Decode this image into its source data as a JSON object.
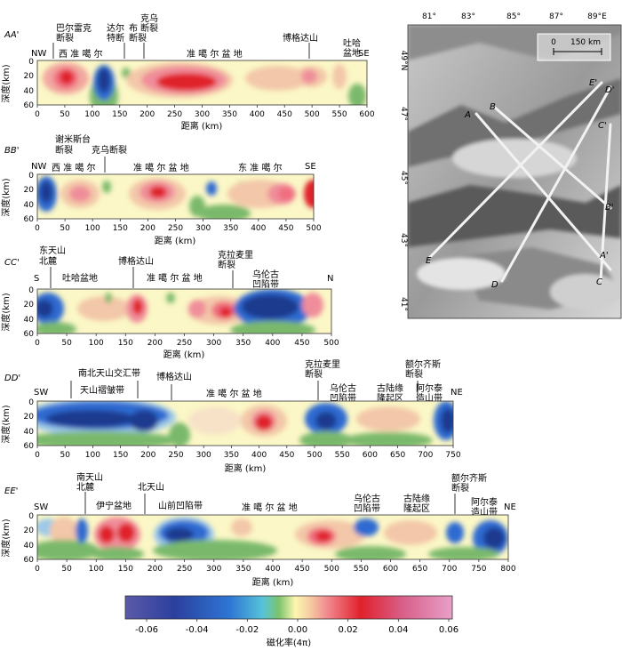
{
  "colors": {
    "neg3": "#1d3b8f",
    "neg2": "#2f6bd1",
    "neg1": "#9cc9e8",
    "zero_low": "#7ab96c",
    "zero": "#fbf7c6",
    "pos1": "#f6c9a4",
    "pos2": "#f08d9a",
    "pos3": "#e0212b"
  },
  "common": {
    "depth_label": "深度(km)",
    "distance_label": "距离 (km)",
    "depth_ticks": [
      "0",
      "20",
      "40",
      "60"
    ]
  },
  "profiles": [
    {
      "id": "AA'",
      "left_dir": "NW",
      "right_dir": "SE",
      "x_ticks": [
        "0",
        "50",
        "100",
        "150",
        "200",
        "250",
        "300",
        "350",
        "400",
        "450",
        "500",
        "550",
        "600"
      ],
      "annotations": [
        {
          "l1": "巴尔雷克",
          "l2": "断裂"
        },
        {
          "l1": "达尔",
          "l2": "特断"
        },
        {
          "l1": "布",
          "l2": "断裂"
        },
        {
          "l1": "克乌",
          "l2": "断裂"
        },
        {
          "l1": "博格达山",
          "l2": ""
        },
        {
          "l1": "吐哈",
          "l2": "盆地"
        }
      ],
      "regions": [
        "西 准 噶 尔",
        "准 噶 尔 盆 地"
      ]
    },
    {
      "id": "BB'",
      "left_dir": "NW",
      "right_dir": "SE",
      "x_ticks": [
        "0",
        "50",
        "100",
        "150",
        "200",
        "250",
        "300",
        "350",
        "400",
        "450",
        "500"
      ],
      "annotations": [
        {
          "l1": "谢米斯台",
          "l2": "断裂"
        },
        {
          "l1": "克乌断裂",
          "l2": ""
        }
      ],
      "regions": [
        "西 准 噶 尔",
        "准 噶 尔 盆 地",
        "东 准 噶 尔"
      ]
    },
    {
      "id": "CC'",
      "left_dir": "S",
      "right_dir": "N",
      "x_ticks": [
        "0",
        "50",
        "100",
        "150",
        "200",
        "250",
        "300",
        "350",
        "400",
        "450",
        "500"
      ],
      "annotations": [
        {
          "l1": "东天山",
          "l2": "北麓"
        },
        {
          "l1": "博格达山",
          "l2": ""
        },
        {
          "l1": "克拉麦里",
          "l2": "断裂"
        },
        {
          "l1": "乌伦古",
          "l2": "凹陷带"
        }
      ],
      "regions": [
        "吐哈盆地",
        "准 噶 尔 盆 地"
      ]
    },
    {
      "id": "DD'",
      "left_dir": "SW",
      "right_dir": "NE",
      "x_ticks": [
        "0",
        "50",
        "100",
        "150",
        "200",
        "250",
        "300",
        "350",
        "400",
        "450",
        "500",
        "550",
        "600",
        "650",
        "700",
        "750"
      ],
      "annotations": [
        {
          "l1": "南北天山交汇带",
          "l2": ""
        },
        {
          "l1": "天山褶皱带",
          "l2": ""
        },
        {
          "l1": "博格达山",
          "l2": ""
        },
        {
          "l1": "克拉麦里",
          "l2": "断裂"
        },
        {
          "l1": "乌伦古",
          "l2": "凹陷带"
        },
        {
          "l1": "古陆缘",
          "l2": "隆起区"
        },
        {
          "l1": "额尔齐斯",
          "l2": "断裂"
        },
        {
          "l1": "阿尔泰",
          "l2": "造山带"
        }
      ],
      "regions": [
        "准 噶 尔 盆 地"
      ]
    },
    {
      "id": "EE'",
      "left_dir": "SW",
      "right_dir": "NE",
      "x_ticks": [
        "0",
        "50",
        "100",
        "150",
        "200",
        "250",
        "300",
        "350",
        "400",
        "450",
        "500",
        "550",
        "600",
        "650",
        "700",
        "750",
        "800"
      ],
      "annotations": [
        {
          "l1": "南天山",
          "l2": "北麓"
        },
        {
          "l1": "伊宁盆地",
          "l2": ""
        },
        {
          "l1": "北天山",
          "l2": ""
        },
        {
          "l1": "山前凹陷带",
          "l2": ""
        },
        {
          "l1": "乌伦古",
          "l2": "凹陷带"
        },
        {
          "l1": "古陆缘",
          "l2": "隆起区"
        },
        {
          "l1": "额尔齐斯",
          "l2": "断裂"
        },
        {
          "l1": "阿尔泰",
          "l2": "造山带"
        }
      ],
      "regions": [
        "准 噶 尔 盆 地"
      ]
    }
  ],
  "map": {
    "lon_labels": [
      "81°",
      "83°",
      "85°",
      "87°",
      "89°E"
    ],
    "lat_labels": [
      "49°N",
      "47°",
      "45°",
      "43°",
      "41°"
    ],
    "scale_zero": "0",
    "scale_km": "150 km",
    "line_labels": [
      "A",
      "A'",
      "B",
      "B'",
      "C",
      "C'",
      "D",
      "D'",
      "E",
      "E'"
    ]
  },
  "colorbar": {
    "ticks": [
      "-0.06",
      "-0.04",
      "-0.02",
      "0.00",
      "0.02",
      "0.04",
      "0.06"
    ],
    "label": "磁化率(4π)"
  }
}
